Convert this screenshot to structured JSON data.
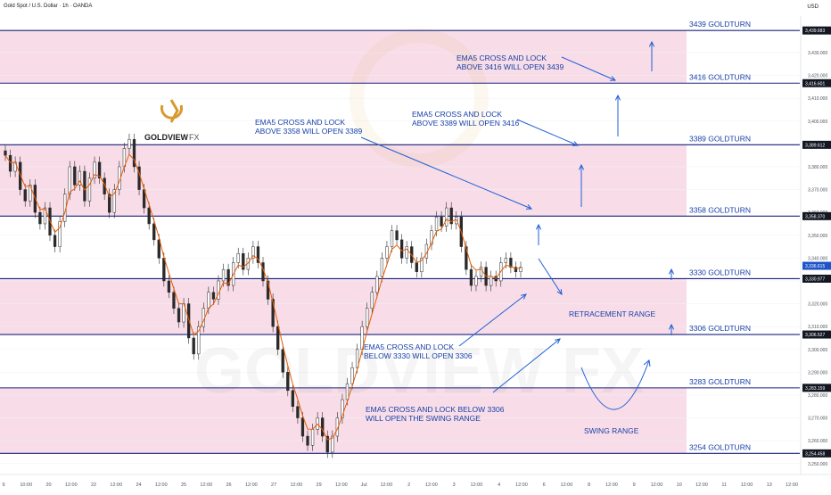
{
  "header": {
    "symbol": "Gold Spot / U.S. Dollar · 1h · OANDA",
    "currency": "USD"
  },
  "brand": {
    "name": "GOLDVIEW",
    "suffix": "FX",
    "watermark": "GOLDVIEW FX"
  },
  "colors": {
    "zone": "#f8dde8",
    "level_line": "#1a237e",
    "arrow": "#1f5fd6",
    "annotation": "#1740a8",
    "candle_up": "#2a2a2a",
    "candle_down": "#2a2a2a",
    "ema": "#e65c00",
    "logo_gold": "#d89a2b",
    "last_price_bg": "#1e54c8"
  },
  "chart_data": {
    "type": "candlestick",
    "title": "Gold Spot / U.S. Dollar · 1h · OANDA",
    "y_axis": {
      "range": [
        3246,
        3446
      ],
      "ticks": [
        3250,
        3260,
        3270,
        3280,
        3290,
        3300,
        3310,
        3320,
        3330,
        3340,
        3350,
        3360,
        3370,
        3380,
        3390,
        3400,
        3410,
        3420,
        3430
      ],
      "unit": "USD"
    },
    "x_axis": {
      "ticks": [
        "9",
        "10:00",
        "20",
        "12:00",
        "22",
        "12:00",
        "24",
        "12:00",
        "25",
        "12:00",
        "26",
        "12:00",
        "27",
        "12:00",
        "29",
        "12:00",
        "Jul",
        "12:00",
        "2",
        "12:00",
        "3",
        "12:00",
        "4",
        "12:00",
        "6",
        "12:00",
        "8",
        "12:00",
        "9",
        "12:00",
        "10",
        "12:00",
        "11",
        "12:00",
        "13",
        "12:00"
      ]
    },
    "levels": [
      {
        "label": "3439 GOLDTURN",
        "value": 3439.683,
        "price_label": "3,439.683"
      },
      {
        "label": "3416 GOLDTURN",
        "value": 3416.601,
        "price_label": "3,416.601"
      },
      {
        "label": "3389 GOLDTURN",
        "value": 3389.612,
        "price_label": "3,389.612"
      },
      {
        "label": "3358 GOLDTURN",
        "value": 3358.37,
        "price_label": "3,358.370"
      },
      {
        "label": "3330 GOLDTURN",
        "value": 3330.977,
        "price_label": "3,330.977"
      },
      {
        "label": "3306 GOLDTURN",
        "value": 3306.527,
        "price_label": "3,306.527"
      },
      {
        "label": "3283 GOLDTURN",
        "value": 3283.159,
        "price_label": "3,283.159"
      },
      {
        "label": "3254 GOLDTURN",
        "value": 3254.458,
        "price_label": "3,254.458"
      }
    ],
    "last_price": {
      "value": 3336.615,
      "label": "3,336.615"
    },
    "zones": [
      {
        "from": 3416.601,
        "to": 3439.683
      },
      {
        "from": 3358.37,
        "to": 3389.612
      },
      {
        "from": 3306.527,
        "to": 3330.977
      },
      {
        "from": 3254.458,
        "to": 3283.159
      }
    ],
    "close_path": [
      3385,
      3378,
      3382,
      3370,
      3365,
      3372,
      3360,
      3355,
      3362,
      3350,
      3345,
      3356,
      3368,
      3380,
      3372,
      3378,
      3365,
      3375,
      3382,
      3375,
      3368,
      3360,
      3370,
      3380,
      3388,
      3392,
      3380,
      3370,
      3362,
      3355,
      3348,
      3340,
      3330,
      3325,
      3318,
      3312,
      3320,
      3305,
      3298,
      3310,
      3318,
      3325,
      3322,
      3330,
      3335,
      3328,
      3338,
      3342,
      3335,
      3340,
      3345,
      3338,
      3330,
      3322,
      3310,
      3300,
      3290,
      3282,
      3275,
      3270,
      3262,
      3258,
      3265,
      3270,
      3262,
      3255,
      3262,
      3270,
      3278,
      3285,
      3292,
      3300,
      3310,
      3318,
      3325,
      3332,
      3340,
      3345,
      3352,
      3348,
      3340,
      3345,
      3338,
      3334,
      3340,
      3346,
      3352,
      3358,
      3354,
      3362,
      3355,
      3358,
      3345,
      3335,
      3328,
      3332,
      3336,
      3328,
      3332,
      3330,
      3338,
      3340,
      3336,
      3334,
      3336
    ],
    "annotations": [
      {
        "lines": [
          "EMA5 CROSS AND LOCK",
          "ABOVE 3416 WILL OPEN 3439"
        ]
      },
      {
        "lines": [
          "EMA5 CROSS AND LOCK",
          "ABOVE 3389 WILL OPEN 3416"
        ]
      },
      {
        "lines": [
          "EMA5 CROSS AND LOCK",
          "ABOVE 3358 WILL OPEN 3389"
        ]
      },
      {
        "lines": [
          "RETRACEMENT RANGE"
        ]
      },
      {
        "lines": [
          "EMA5 CROSS AND LOCK",
          "BELOW 3330 WILL OPEN 3306"
        ]
      },
      {
        "lines": [
          "EMA5 CROSS AND LOCK BELOW 3306",
          "WILL OPEN THE SWING RANGE"
        ]
      },
      {
        "lines": [
          "SWING RANGE"
        ]
      }
    ]
  }
}
